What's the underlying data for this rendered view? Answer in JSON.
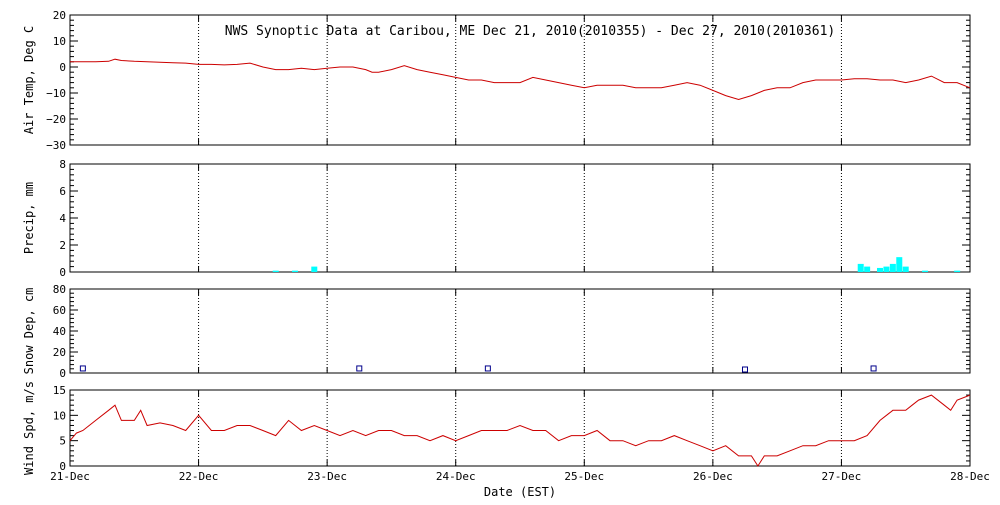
{
  "chart_data": {
    "title": "NWS Synoptic Data at Caribou, ME   Dec 21, 2010(2010355) - Dec 27, 2010(2010361)",
    "xlabel": "Date (EST)",
    "x_ticks": [
      "21-Dec",
      "22-Dec",
      "23-Dec",
      "24-Dec",
      "25-Dec",
      "26-Dec",
      "27-Dec",
      "28-Dec"
    ],
    "x_range_days": [
      0,
      7
    ],
    "colors": {
      "line": "#cc0000",
      "bar": "#00ffff",
      "marker": "#00008b",
      "grid": "#000000"
    },
    "panels": [
      {
        "type": "line",
        "ylabel": "Air Temp, Deg C",
        "ylim": [
          -30,
          20
        ],
        "yticks": [
          -30,
          -20,
          -10,
          0,
          10,
          20
        ],
        "grid": true,
        "series": [
          {
            "x": [
              0,
              0.1,
              0.2,
              0.3,
              0.35,
              0.4,
              0.5,
              0.6,
              0.7,
              0.8,
              0.9,
              1.0,
              1.1,
              1.2,
              1.3,
              1.4,
              1.5,
              1.6,
              1.7,
              1.8,
              1.9,
              2.0,
              2.1,
              2.2,
              2.3,
              2.35,
              2.4,
              2.5,
              2.6,
              2.7,
              2.8,
              2.9,
              3.0,
              3.1,
              3.2,
              3.3,
              3.4,
              3.5,
              3.6,
              3.7,
              3.8,
              3.9,
              4.0,
              4.1,
              4.2,
              4.3,
              4.4,
              4.5,
              4.6,
              4.7,
              4.8,
              4.9,
              5.0,
              5.1,
              5.2,
              5.3,
              5.4,
              5.5,
              5.6,
              5.7,
              5.8,
              5.9,
              6.0,
              6.1,
              6.2,
              6.3,
              6.4,
              6.5,
              6.6,
              6.7,
              6.8,
              6.9,
              7.0
            ],
            "y": [
              2,
              2,
              2,
              2.2,
              3,
              2.5,
              2.2,
              2,
              1.8,
              1.6,
              1.5,
              1,
              1,
              0.8,
              1,
              1.5,
              0,
              -1,
              -1,
              -0.5,
              -1,
              -0.5,
              0,
              0,
              -1,
              -2,
              -2,
              -1,
              0.5,
              -1,
              -2,
              -3,
              -4,
              -5,
              -5,
              -6,
              -6,
              -6,
              -4,
              -5,
              -6,
              -7,
              -8,
              -7,
              -7,
              -7,
              -8,
              -8,
              -8,
              -7,
              -6,
              -7,
              -9,
              -11,
              -12.5,
              -11,
              -9,
              -8,
              -8,
              -6,
              -5,
              -5,
              -5,
              -4.5,
              -4.5,
              -5,
              -5,
              -6,
              -5,
              -3.5,
              -6,
              -6,
              -8
            ]
          }
        ]
      },
      {
        "type": "bar",
        "ylabel": "Precip, mm",
        "ylim": [
          0,
          8
        ],
        "yticks": [
          0,
          2,
          4,
          6,
          8
        ],
        "grid": true,
        "bars": {
          "x": [
            1.6,
            1.75,
            1.9,
            6.15,
            6.2,
            6.3,
            6.35,
            6.4,
            6.45,
            6.5,
            6.65,
            6.9
          ],
          "y": [
            0.1,
            0.1,
            0.4,
            0.6,
            0.4,
            0.3,
            0.4,
            0.6,
            1.1,
            0.4,
            0.1,
            0.1
          ]
        }
      },
      {
        "type": "scatter",
        "ylabel": "Snow Dep, cm",
        "ylim": [
          0,
          80
        ],
        "yticks": [
          0,
          20,
          40,
          60,
          80
        ],
        "grid": true,
        "points": {
          "x": [
            0.1,
            2.25,
            3.25,
            5.25,
            6.25
          ],
          "y": [
            1,
            1,
            1,
            0,
            1
          ]
        }
      },
      {
        "type": "line",
        "ylabel": "Wind Spd, m/s",
        "ylim": [
          0,
          15
        ],
        "yticks": [
          0,
          5,
          10,
          15
        ],
        "grid": true,
        "series": [
          {
            "x": [
              0,
              0.05,
              0.1,
              0.2,
              0.3,
              0.35,
              0.4,
              0.5,
              0.55,
              0.6,
              0.7,
              0.8,
              0.9,
              1.0,
              1.1,
              1.2,
              1.3,
              1.4,
              1.5,
              1.6,
              1.7,
              1.8,
              1.9,
              2.0,
              2.1,
              2.2,
              2.3,
              2.4,
              2.5,
              2.6,
              2.7,
              2.8,
              2.9,
              3.0,
              3.1,
              3.2,
              3.3,
              3.4,
              3.5,
              3.6,
              3.7,
              3.8,
              3.9,
              4.0,
              4.1,
              4.2,
              4.3,
              4.4,
              4.5,
              4.6,
              4.7,
              4.8,
              4.9,
              5.0,
              5.1,
              5.2,
              5.3,
              5.35,
              5.4,
              5.5,
              5.6,
              5.7,
              5.8,
              5.9,
              6.0,
              6.1,
              6.2,
              6.3,
              6.4,
              6.5,
              6.55,
              6.6,
              6.7,
              6.8,
              6.85,
              6.9,
              7.0
            ],
            "y": [
              5,
              6.5,
              7,
              9,
              11,
              12,
              9,
              9,
              11,
              8,
              8.5,
              8,
              7,
              10,
              7,
              7,
              8,
              8,
              7,
              6,
              9,
              7,
              8,
              7,
              6,
              7,
              6,
              7,
              7,
              6,
              6,
              5,
              6,
              5,
              6,
              7,
              7,
              7,
              8,
              7,
              7,
              5,
              6,
              6,
              7,
              5,
              5,
              4,
              5,
              5,
              6,
              5,
              4,
              3,
              4,
              2,
              2,
              0,
              2,
              2,
              3,
              4,
              4,
              5,
              5,
              5,
              6,
              9,
              11,
              11,
              12,
              13,
              14,
              12,
              11,
              13,
              14
            ]
          }
        ]
      }
    ]
  }
}
